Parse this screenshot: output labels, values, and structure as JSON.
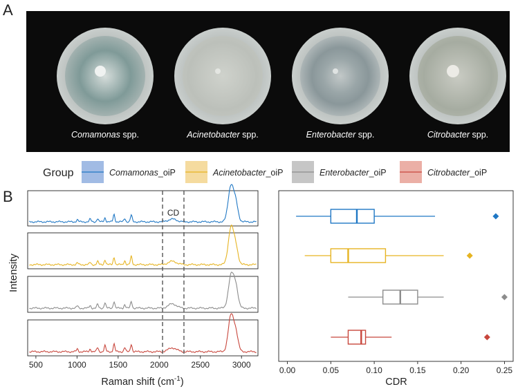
{
  "panel_a_label": "A",
  "panel_b_label": "B",
  "photos": [
    {
      "genus": "Comamonas",
      "suffix": " spp."
    },
    {
      "genus": "Acinetobacter",
      "suffix": " spp."
    },
    {
      "genus": "Enterobacter",
      "suffix": " spp."
    },
    {
      "genus": "Citrobacter",
      "suffix": " spp."
    }
  ],
  "legend": {
    "title": "Group",
    "items": [
      {
        "genus": "Comamonas",
        "suffix": "_oiP"
      },
      {
        "genus": "Acinetobacter",
        "suffix": "_oiP"
      },
      {
        "genus": "Enterobacter",
        "suffix": "_oiP"
      },
      {
        "genus": "Citrobacter",
        "suffix": "_oiP"
      }
    ]
  },
  "colors": {
    "comamonas": "#1f77c4",
    "acinetobacter": "#e6b422",
    "enterobacter": "#8c8c8c",
    "citrobacter": "#c8463c"
  },
  "chart_data": [
    {
      "type": "line",
      "title": "",
      "xlabel": "Raman shift (cm⁻¹)",
      "xlabel_main": "Raman shift (cm",
      "xlabel_sup": "-1",
      "xlabel_close": ")",
      "ylabel": "Intensity",
      "xlim": [
        400,
        3200
      ],
      "x_ticks": [
        500,
        1000,
        1500,
        2000,
        2500,
        3000
      ],
      "x_tick_labels": [
        "500",
        "1000",
        "1500",
        "2000",
        "2500",
        "3000"
      ],
      "cd_region": [
        2040,
        2300
      ],
      "cd_label": "CD",
      "peaks_x": [
        1004,
        1160,
        1250,
        1340,
        1450,
        1580,
        1660,
        2160,
        2850,
        2880,
        2930
      ],
      "series": [
        {
          "name": "Comamonas_oiP",
          "peaks_y": [
            0.08,
            0.1,
            0.12,
            0.15,
            0.28,
            0.13,
            0.25,
            0.05,
            0.55,
            0.95,
            0.7
          ],
          "cd_band": 0.05
        },
        {
          "name": "Acinetobacter_oiP",
          "peaks_y": [
            0.06,
            0.08,
            0.12,
            0.18,
            0.28,
            0.15,
            0.3,
            0.06,
            0.5,
            1.0,
            0.65
          ],
          "cd_band": 0.06
        },
        {
          "name": "Enterobacter_oiP",
          "peaks_y": [
            0.08,
            0.1,
            0.14,
            0.2,
            0.25,
            0.13,
            0.25,
            0.12,
            0.4,
            0.9,
            0.8
          ],
          "cd_band": 0.04
        },
        {
          "name": "Citrobacter_oiP",
          "peaks_y": [
            0.1,
            0.1,
            0.15,
            0.22,
            0.28,
            0.15,
            0.28,
            0.1,
            0.5,
            0.95,
            0.7
          ],
          "cd_band": 0.04
        }
      ]
    },
    {
      "type": "box",
      "xlabel": "CDR",
      "ylabel": "",
      "xlim": [
        -0.01,
        0.26
      ],
      "x_ticks": [
        0.0,
        0.05,
        0.1,
        0.15,
        0.2,
        0.25
      ],
      "x_tick_labels": [
        "0.00",
        "0.05",
        "0.10",
        "0.15",
        "0.20",
        "0.25"
      ],
      "series": [
        {
          "name": "Comamonas_oiP",
          "min": 0.01,
          "q1": 0.05,
          "median": 0.08,
          "q3": 0.1,
          "max": 0.17,
          "outlier": 0.24
        },
        {
          "name": "Acinetobacter_oiP",
          "min": 0.02,
          "q1": 0.05,
          "median": 0.07,
          "q3": 0.113,
          "max": 0.18,
          "outlier": 0.21
        },
        {
          "name": "Enterobacter_oiP",
          "min": 0.07,
          "q1": 0.11,
          "median": 0.13,
          "q3": 0.15,
          "max": 0.18,
          "outlier": 0.25
        },
        {
          "name": "Citrobacter_oiP",
          "min": 0.05,
          "q1": 0.07,
          "median": 0.085,
          "q3": 0.09,
          "max": 0.12,
          "outlier": 0.23
        }
      ]
    }
  ]
}
